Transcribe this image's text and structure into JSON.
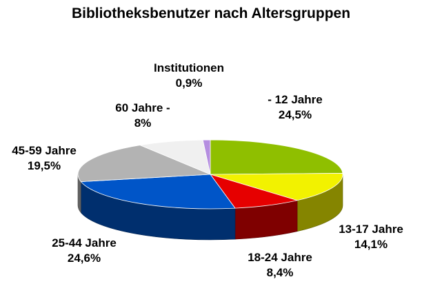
{
  "chart_data": {
    "type": "pie",
    "style": "3d",
    "title": "Bibliotheksbenutzer nach Altersgruppen",
    "slices": [
      {
        "label": "- 12 Jahre",
        "value": 24.5,
        "value_label": "24,5%",
        "color": "#8fbf00"
      },
      {
        "label": "13-17 Jahre",
        "value": 14.1,
        "value_label": "14,1%",
        "color": "#f2f200"
      },
      {
        "label": "18-24 Jahre",
        "value": 8.4,
        "value_label": "8,4%",
        "color": "#e60000"
      },
      {
        "label": "25-44 Jahre",
        "value": 24.6,
        "value_label": "24,6%",
        "color": "#0055c8"
      },
      {
        "label": "45-59 Jahre",
        "value": 19.5,
        "value_label": "19,5%",
        "color": "#b3b3b3"
      },
      {
        "label": "60 Jahre -",
        "value": 8,
        "value_label": "8%",
        "color": "#f0f0f0"
      },
      {
        "label": "Institutionen",
        "value": 0.9,
        "value_label": "0,9%",
        "color": "#b58ee0"
      }
    ],
    "legend": "none"
  }
}
